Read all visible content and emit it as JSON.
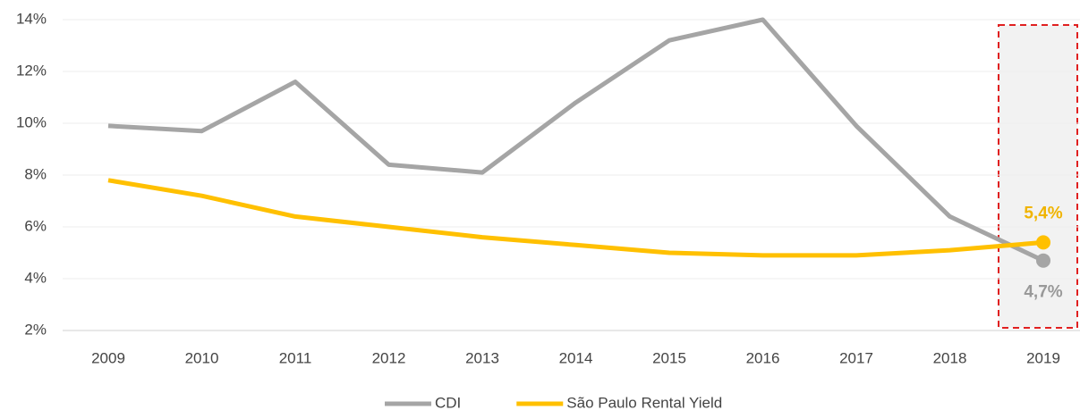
{
  "chart_data": {
    "type": "line",
    "categories": [
      "2009",
      "2010",
      "2011",
      "2012",
      "2013",
      "2014",
      "2015",
      "2016",
      "2017",
      "2018",
      "2019"
    ],
    "series": [
      {
        "name": "CDI",
        "color": "#a5a5a5",
        "values": [
          9.9,
          9.7,
          11.6,
          8.4,
          8.1,
          10.8,
          13.2,
          14.0,
          9.9,
          6.4,
          4.7
        ],
        "value_labels": [
          null,
          null,
          null,
          null,
          null,
          null,
          null,
          null,
          null,
          null,
          "4,7%"
        ]
      },
      {
        "name": "São Paulo Rental Yield",
        "color": "#ffc000",
        "values": [
          7.8,
          7.2,
          6.4,
          6.0,
          5.6,
          5.3,
          5.0,
          4.9,
          4.9,
          5.1,
          5.4
        ],
        "value_labels": [
          null,
          null,
          null,
          null,
          null,
          null,
          null,
          null,
          null,
          null,
          "5,4%"
        ]
      }
    ],
    "ylim": [
      2,
      14
    ],
    "yticks": [
      {
        "value": 2,
        "label": "2%"
      },
      {
        "value": 4,
        "label": "4%"
      },
      {
        "value": 6,
        "label": "6%"
      },
      {
        "value": 8,
        "label": "8%"
      },
      {
        "value": 10,
        "label": "10%"
      },
      {
        "value": 12,
        "label": "12%"
      },
      {
        "value": 14,
        "label": "14%"
      }
    ],
    "grid": true,
    "legend": "bottom"
  }
}
